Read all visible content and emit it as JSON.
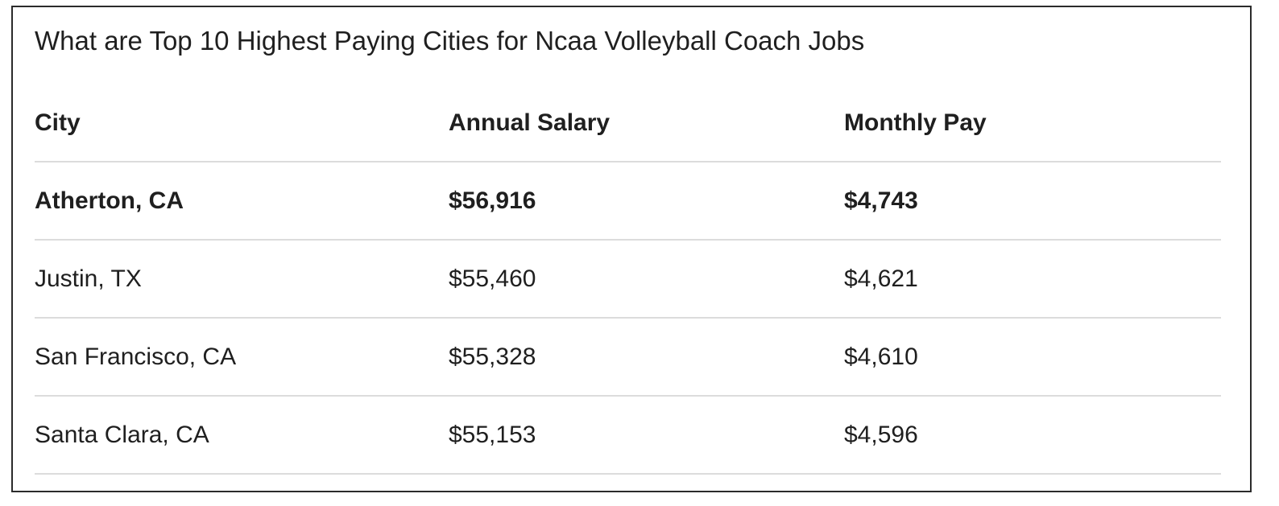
{
  "title": "What are Top 10 Highest Paying Cities for Ncaa Volleyball Coach Jobs",
  "table": {
    "headers": [
      "City",
      "Annual Salary",
      "Monthly Pay"
    ],
    "rows": [
      {
        "city": "Atherton, CA",
        "annual": "$56,916",
        "monthly": "$4,743"
      },
      {
        "city": "Justin, TX",
        "annual": "$55,460",
        "monthly": "$4,621"
      },
      {
        "city": "San Francisco, CA",
        "annual": "$55,328",
        "monthly": "$4,610"
      },
      {
        "city": "Santa Clara, CA",
        "annual": "$55,153",
        "monthly": "$4,596"
      }
    ]
  }
}
